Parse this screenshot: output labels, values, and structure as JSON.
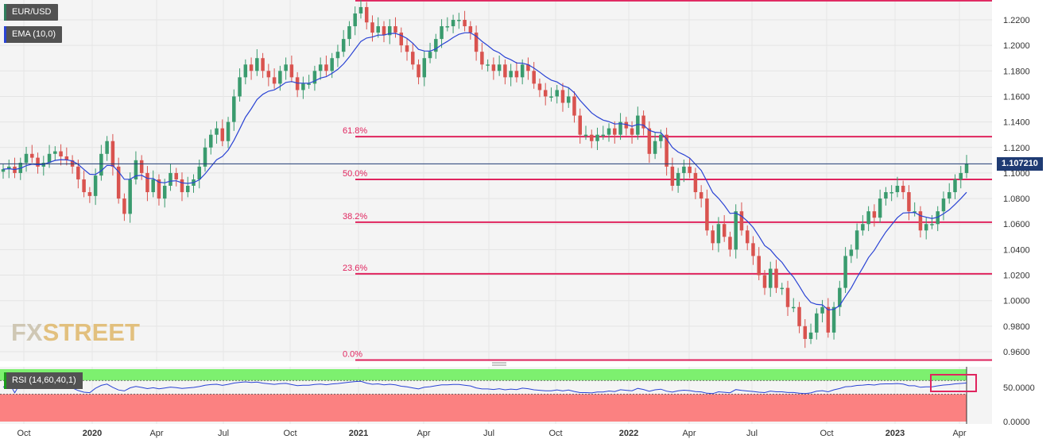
{
  "legend": {
    "symbol_label": "EUR/USD",
    "ema_label": "EMA (10,0)",
    "symbol_color": "#2e7d5b",
    "ema_color": "#2a43d4"
  },
  "watermark": {
    "part1": "FX",
    "part2": "STREET"
  },
  "current_price_label": "1.107210",
  "rsi_label": "RSI (14,60,40,1)",
  "colors": {
    "up_candle": "#3a9b6e",
    "down_candle": "#d9534f",
    "fib_line": "#e0245e",
    "ema_line": "#2a43d4",
    "rsi_line": "#2a43d4",
    "rsi_upper_zone": "#7df06f",
    "rsi_lower_zone": "#fb8181",
    "current_price_line": "#1f3b73",
    "highlight_box": "#e0245e"
  },
  "chart_data": {
    "type": "candlestick",
    "timeframe": "weekly",
    "symbol": "EUR/USD",
    "y_ticks": [
      "1.2200",
      "1.2000",
      "1.1800",
      "1.1600",
      "1.1400",
      "1.1200",
      "1.1000",
      "1.0800",
      "1.0600",
      "1.0400",
      "1.0200",
      "1.0000",
      "0.9800",
      "0.9600"
    ],
    "x_ticks": [
      "Oct",
      "2020",
      "Apr",
      "Jul",
      "Oct",
      "2021",
      "Apr",
      "Jul",
      "Oct",
      "2022",
      "Apr",
      "Jul",
      "Oct",
      "2023",
      "Apr"
    ],
    "fibonacci": [
      {
        "label": "61.8%",
        "price": 1.1285
      },
      {
        "label": "50.0%",
        "price": 1.095
      },
      {
        "label": "38.2%",
        "price": 1.0615
      },
      {
        "label": "23.6%",
        "price": 1.021
      },
      {
        "label": "0.0%",
        "price": 0.9535
      }
    ],
    "fib_top_price": 1.235,
    "current_price": 1.10721,
    "close_path": [
      1.103,
      1.105,
      1.1,
      1.108,
      1.115,
      1.112,
      1.105,
      1.108,
      1.115,
      1.117,
      1.113,
      1.11,
      1.105,
      1.095,
      1.085,
      1.082,
      1.098,
      1.115,
      1.125,
      1.105,
      1.08,
      1.068,
      1.095,
      1.11,
      1.1,
      1.085,
      1.095,
      1.08,
      1.09,
      1.1,
      1.095,
      1.085,
      1.09,
      1.095,
      1.105,
      1.12,
      1.13,
      1.135,
      1.125,
      1.14,
      1.16,
      1.175,
      1.185,
      1.18,
      1.19,
      1.18,
      1.175,
      1.17,
      1.18,
      1.185,
      1.175,
      1.165,
      1.17,
      1.17,
      1.18,
      1.185,
      1.18,
      1.19,
      1.195,
      1.205,
      1.215,
      1.225,
      1.23,
      1.218,
      1.21,
      1.215,
      1.208,
      1.215,
      1.21,
      1.2,
      1.195,
      1.185,
      1.175,
      1.19,
      1.195,
      1.205,
      1.215,
      1.215,
      1.22,
      1.22,
      1.215,
      1.21,
      1.195,
      1.185,
      1.185,
      1.18,
      1.185,
      1.175,
      1.18,
      1.175,
      1.185,
      1.18,
      1.17,
      1.165,
      1.16,
      1.16,
      1.165,
      1.155,
      1.16,
      1.145,
      1.13,
      1.13,
      1.125,
      1.13,
      1.13,
      1.135,
      1.13,
      1.14,
      1.135,
      1.13,
      1.145,
      1.135,
      1.115,
      1.125,
      1.13,
      1.105,
      1.09,
      1.1,
      1.105,
      1.1,
      1.085,
      1.08,
      1.055,
      1.045,
      1.06,
      1.05,
      1.04,
      1.07,
      1.055,
      1.045,
      1.035,
      1.02,
      1.01,
      1.025,
      1.01,
      1.01,
      0.995,
      0.995,
      0.98,
      0.97,
      0.975,
      0.99,
      0.995,
      0.975,
      0.995,
      1.01,
      1.035,
      1.04,
      1.055,
      1.06,
      1.07,
      1.065,
      1.08,
      1.085,
      1.085,
      1.09,
      1.085,
      1.07,
      1.07,
      1.055,
      1.06,
      1.06,
      1.07,
      1.08,
      1.085,
      1.095,
      1.1,
      1.1072
    ],
    "rsi": {
      "y_ticks": [
        "50.0000",
        "0.0000"
      ],
      "upper_level": 60,
      "lower_level": 40
    }
  }
}
